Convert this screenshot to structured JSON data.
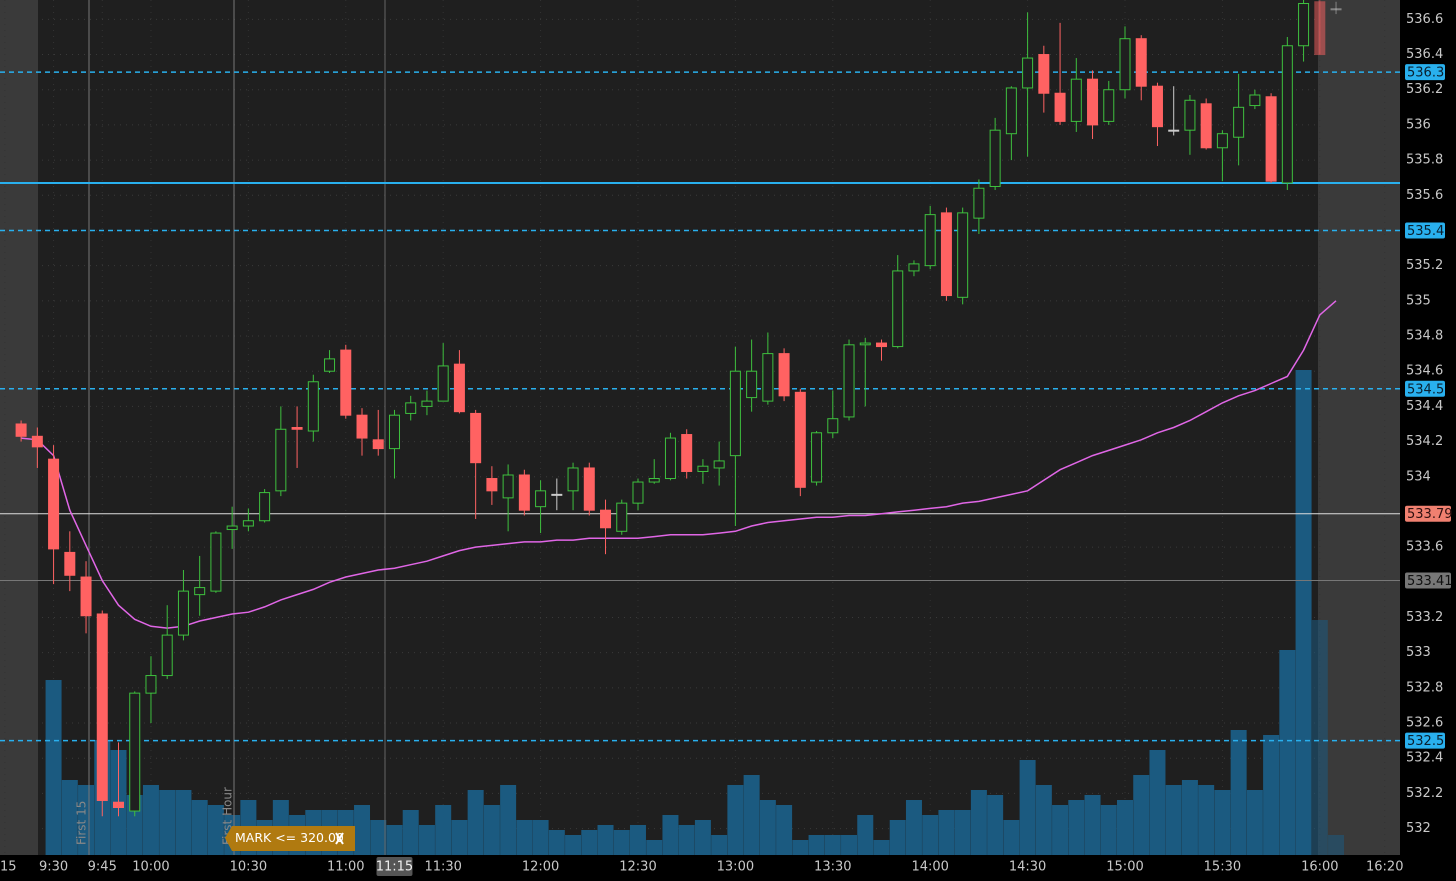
{
  "chart_data": {
    "type": "candlestick",
    "x": [
      560,
      565,
      570,
      575,
      580,
      585,
      590,
      595,
      600,
      605,
      610,
      615,
      620,
      625,
      630,
      635,
      640,
      645,
      650,
      655,
      660,
      665,
      670,
      675,
      680,
      685,
      690,
      695,
      700,
      705,
      710,
      715,
      720,
      725,
      730,
      735,
      740,
      745,
      750,
      755,
      760,
      765,
      770,
      775,
      780,
      785,
      790,
      795,
      800,
      805,
      810,
      815,
      820,
      825,
      830,
      835,
      840,
      845,
      850,
      855,
      860,
      865,
      870,
      875,
      880,
      885,
      890,
      895,
      900,
      905,
      910,
      915,
      920,
      925,
      930,
      935,
      940,
      945,
      950,
      955,
      960,
      965
    ],
    "open": [
      534.3,
      534.23,
      534.1,
      533.57,
      533.43,
      533.22,
      532.15,
      532.1,
      532.77,
      532.87,
      533.1,
      533.33,
      533.35,
      533.7,
      533.72,
      533.75,
      533.92,
      534.28,
      534.26,
      534.6,
      534.72,
      534.35,
      534.21,
      534.16,
      534.36,
      534.4,
      534.43,
      534.64,
      534.36,
      533.99,
      533.88,
      534.01,
      533.83,
      533.9,
      533.92,
      534.05,
      533.81,
      533.69,
      533.85,
      533.97,
      533.99,
      534.24,
      534.03,
      534.05,
      534.12,
      534.45,
      534.43,
      534.7,
      534.48,
      533.97,
      534.25,
      534.34,
      534.75,
      534.76,
      534.74,
      535.17,
      535.2,
      535.5,
      535.02,
      535.47,
      535.65,
      535.95,
      536.21,
      536.4,
      536.18,
      536.02,
      536.26,
      536.02,
      536.2,
      536.49,
      536.22,
      535.97,
      535.97,
      536.12,
      535.87,
      535.93,
      536.11,
      536.16,
      535.67,
      536.45,
      536.7,
      536.66
    ],
    "high": [
      534.32,
      534.28,
      534.18,
      533.69,
      533.52,
      533.24,
      532.49,
      532.78,
      532.98,
      533.27,
      533.47,
      533.55,
      533.69,
      533.83,
      533.82,
      533.93,
      534.4,
      534.4,
      534.58,
      534.72,
      534.75,
      534.39,
      534.38,
      534.38,
      534.46,
      534.49,
      534.76,
      534.72,
      534.38,
      534.06,
      534.07,
      534.04,
      533.98,
      533.99,
      534.08,
      534.08,
      533.87,
      533.87,
      533.99,
      534.1,
      534.25,
      534.27,
      534.1,
      534.2,
      534.74,
      534.78,
      534.82,
      534.73,
      534.5,
      534.26,
      534.49,
      534.78,
      534.79,
      534.78,
      535.26,
      535.23,
      535.54,
      535.53,
      535.53,
      535.69,
      536.04,
      536.22,
      536.64,
      536.45,
      536.58,
      536.38,
      536.31,
      536.25,
      536.56,
      536.51,
      536.24,
      536.22,
      536.17,
      536.15,
      535.97,
      536.29,
      536.2,
      536.18,
      536.5,
      536.78,
      536.72,
      536.7
    ],
    "low": [
      534.2,
      534.05,
      533.39,
      533.35,
      533.11,
      532.07,
      532.07,
      532.07,
      532.6,
      532.85,
      533.07,
      533.21,
      533.34,
      533.59,
      533.69,
      533.74,
      533.89,
      534.05,
      534.2,
      534.59,
      534.33,
      534.12,
      534.12,
      533.99,
      534.32,
      534.35,
      534.43,
      534.36,
      533.76,
      533.84,
      533.69,
      533.78,
      533.68,
      533.81,
      533.81,
      533.78,
      533.56,
      533.67,
      533.81,
      533.96,
      533.98,
      533.99,
      533.96,
      533.95,
      533.72,
      534.37,
      534.41,
      534.43,
      533.89,
      533.95,
      534.22,
      534.32,
      534.4,
      534.66,
      534.73,
      535.14,
      535.18,
      535.0,
      534.98,
      535.38,
      535.63,
      535.8,
      535.82,
      536.07,
      536.0,
      535.96,
      535.92,
      536.0,
      536.15,
      536.14,
      535.88,
      535.94,
      535.83,
      535.86,
      535.68,
      535.77,
      536.09,
      535.67,
      535.63,
      536.36,
      536.4,
      536.63
    ],
    "close": [
      534.23,
      534.17,
      533.59,
      533.44,
      533.21,
      532.16,
      532.12,
      532.77,
      532.87,
      533.1,
      533.35,
      533.37,
      533.68,
      533.72,
      533.75,
      533.91,
      534.27,
      534.27,
      534.54,
      534.67,
      534.35,
      534.22,
      534.16,
      534.35,
      534.42,
      534.43,
      534.63,
      534.37,
      534.08,
      533.92,
      534.01,
      533.81,
      533.92,
      533.9,
      534.05,
      533.81,
      533.71,
      533.85,
      533.97,
      533.99,
      534.22,
      534.03,
      534.06,
      534.09,
      534.6,
      534.6,
      534.7,
      534.46,
      533.94,
      534.25,
      534.33,
      534.75,
      534.76,
      534.74,
      535.17,
      535.21,
      535.49,
      535.03,
      535.5,
      535.64,
      535.97,
      536.21,
      536.38,
      536.18,
      536.02,
      536.26,
      536.0,
      536.2,
      536.49,
      536.22,
      535.99,
      535.97,
      536.14,
      535.87,
      535.95,
      536.1,
      536.17,
      535.68,
      536.45,
      536.69,
      536.4,
      536.66
    ],
    "up_color": "#3ec03e",
    "down_color": "#ff6262",
    "vwap": {
      "color": "#e066e6",
      "values": [
        534.22,
        534.21,
        534.12,
        533.81,
        533.61,
        533.41,
        533.27,
        533.19,
        533.15,
        533.14,
        533.15,
        533.18,
        533.2,
        533.22,
        533.23,
        533.26,
        533.3,
        533.33,
        533.36,
        533.4,
        533.43,
        533.45,
        533.47,
        533.48,
        533.5,
        533.52,
        533.55,
        533.58,
        533.6,
        533.61,
        533.62,
        533.63,
        533.63,
        533.64,
        533.64,
        533.65,
        533.65,
        533.65,
        533.65,
        533.66,
        533.67,
        533.67,
        533.67,
        533.68,
        533.69,
        533.72,
        533.74,
        533.75,
        533.76,
        533.77,
        533.77,
        533.78,
        533.78,
        533.79,
        533.8,
        533.81,
        533.82,
        533.83,
        533.85,
        533.86,
        533.88,
        533.9,
        533.92,
        533.98,
        534.04,
        534.08,
        534.12,
        534.15,
        534.18,
        534.21,
        534.25,
        534.28,
        534.32,
        534.37,
        534.42,
        534.46,
        534.49,
        534.53,
        534.57,
        534.72,
        534.92,
        535.0
      ]
    },
    "volume": {
      "color": "#1b5a80",
      "axis": "y2",
      "values": [
        null,
        null,
        35,
        15,
        14,
        23,
        21,
        12,
        14,
        13,
        13,
        11,
        10,
        8,
        11,
        7,
        11,
        8,
        9,
        9,
        9,
        10,
        7,
        6,
        9,
        6,
        10,
        7,
        13,
        10,
        14,
        7,
        7,
        5,
        4,
        5,
        6,
        5,
        6,
        3,
        8,
        6,
        7,
        4,
        14,
        16,
        11,
        10,
        3,
        4,
        4,
        4,
        8,
        3,
        7,
        11,
        8,
        9,
        9,
        13,
        12,
        7,
        19,
        14,
        10,
        11,
        12,
        10,
        11,
        16,
        21,
        14,
        15,
        14,
        13,
        25,
        13,
        24,
        41,
        97,
        47,
        4
      ]
    },
    "ylim": [
      531.85,
      536.71
    ],
    "y2lim": [
      0,
      100
    ],
    "yticks": [
      536.6,
      536.4,
      536.2,
      536,
      535.8,
      535.6,
      535.4,
      535.2,
      535,
      534.8,
      534.6,
      534.4,
      534.2,
      534,
      533.6,
      533.2,
      533,
      532.8,
      532.6,
      532.4,
      532.2,
      532
    ],
    "xlim": [
      553.5,
      984.7
    ],
    "xticks": [
      {
        "value": 555,
        "label": "15"
      },
      {
        "value": 570,
        "label": "9:30"
      },
      {
        "value": 585,
        "label": "9:45"
      },
      {
        "value": 600,
        "label": "10:00"
      },
      {
        "value": 630,
        "label": "10:30"
      },
      {
        "value": 660,
        "label": "11:00"
      },
      {
        "value": 690,
        "label": "11:30"
      },
      {
        "value": 720,
        "label": "12:00"
      },
      {
        "value": 750,
        "label": "12:30"
      },
      {
        "value": 780,
        "label": "13:00"
      },
      {
        "value": 810,
        "label": "13:30"
      },
      {
        "value": 840,
        "label": "14:00"
      },
      {
        "value": 870,
        "label": "14:30"
      },
      {
        "value": 900,
        "label": "15:00"
      },
      {
        "value": 930,
        "label": "15:30"
      },
      {
        "value": 960,
        "label": "16:00"
      },
      {
        "value": 980,
        "label": "16:20"
      }
    ],
    "cursor_time": {
      "value": 675,
      "label": "11:15"
    },
    "dashed_levels": [
      536.3,
      535.4,
      534.5,
      532.5
    ],
    "level_color": "#29b0ee",
    "solid_level": 535.67,
    "price_marker": 533.79,
    "crosshair_price": 533.41,
    "annotations": [
      "First 15",
      "First Hour"
    ],
    "order_label": "MARK <= 320.00"
  }
}
